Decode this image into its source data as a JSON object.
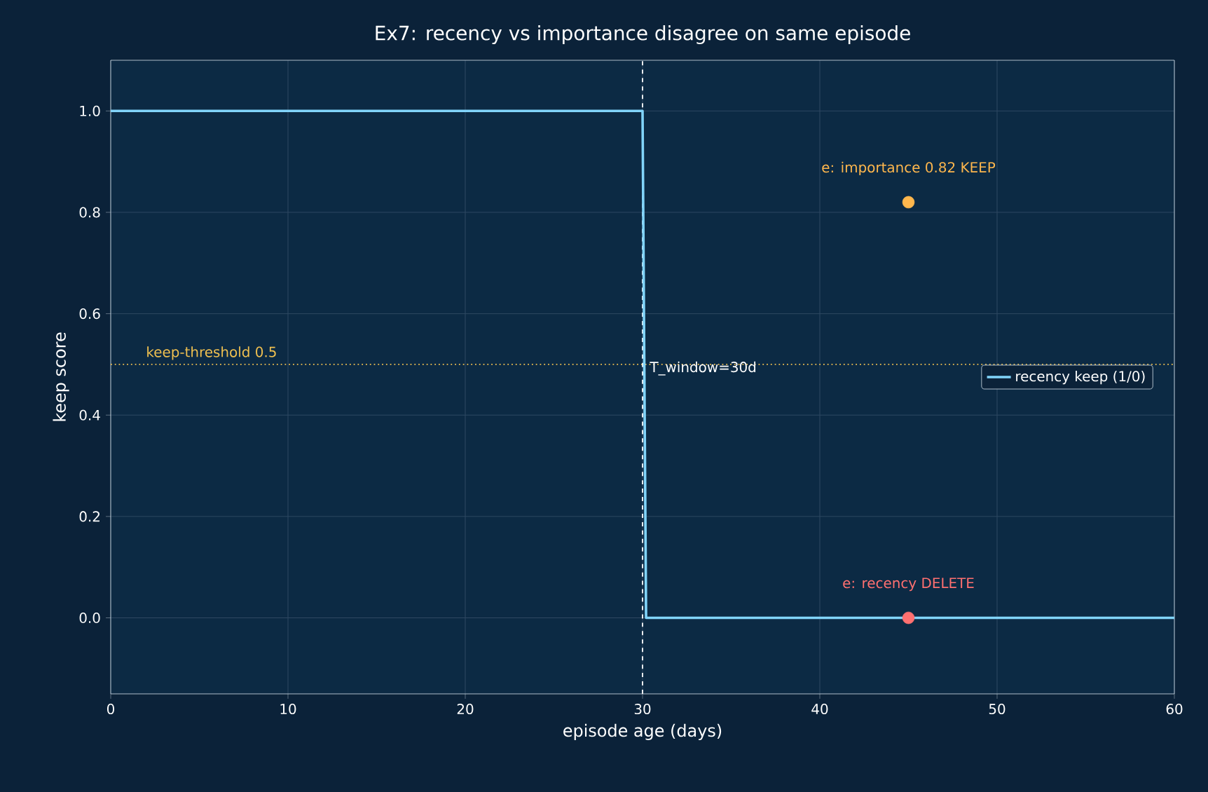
{
  "chart_data": {
    "type": "line",
    "title": "Ex7: recency vs importance disagree on same episode",
    "xlabel": "episode age (days)",
    "ylabel": "keep score",
    "series": [
      {
        "name": "recency keep (1/0)",
        "marker": "none",
        "color": "#81d4fa",
        "x": [
          0,
          30,
          30.2,
          60
        ],
        "values": [
          1,
          1,
          0,
          0
        ]
      },
      {
        "type": "scatter",
        "marker": "circle",
        "color": "#ffb74d",
        "x": [
          45
        ],
        "values": [
          0.82
        ]
      },
      {
        "type": "scatter",
        "marker": "circle",
        "color": "#ff7070",
        "x": [
          45
        ],
        "values": [
          0
        ]
      }
    ],
    "annotations": [
      {
        "text": "e: importance 0.82 KEEP",
        "x": 45,
        "y": 0.82
      },
      {
        "text": "e: recency DELETE",
        "x": 45,
        "y": 0
      }
    ],
    "ref_lines": [
      {
        "axis": "y",
        "value": 0.5,
        "label": "keep-threshold 0.5",
        "color": "#f0c050",
        "line_style": "dotted"
      },
      {
        "axis": "x",
        "value": 30,
        "label": "T_window=30d",
        "color": "#ffffff",
        "line_style": "dashed"
      }
    ],
    "xlim": [
      0,
      60
    ],
    "ylim": [
      -0.15,
      1.1
    ],
    "xticks": [
      0,
      10,
      20,
      30,
      40,
      50,
      60
    ],
    "yticks": [
      {
        "value": 0,
        "label": "0.0"
      },
      {
        "value": 0.2,
        "label": "0.2"
      },
      {
        "value": 0.4,
        "label": "0.4"
      },
      {
        "value": 0.6,
        "label": "0.6"
      },
      {
        "value": 0.8,
        "label": "0.8"
      },
      {
        "value": 1,
        "label": "1.0"
      }
    ],
    "grid": true,
    "legend": "center right",
    "line_style": "solid"
  }
}
